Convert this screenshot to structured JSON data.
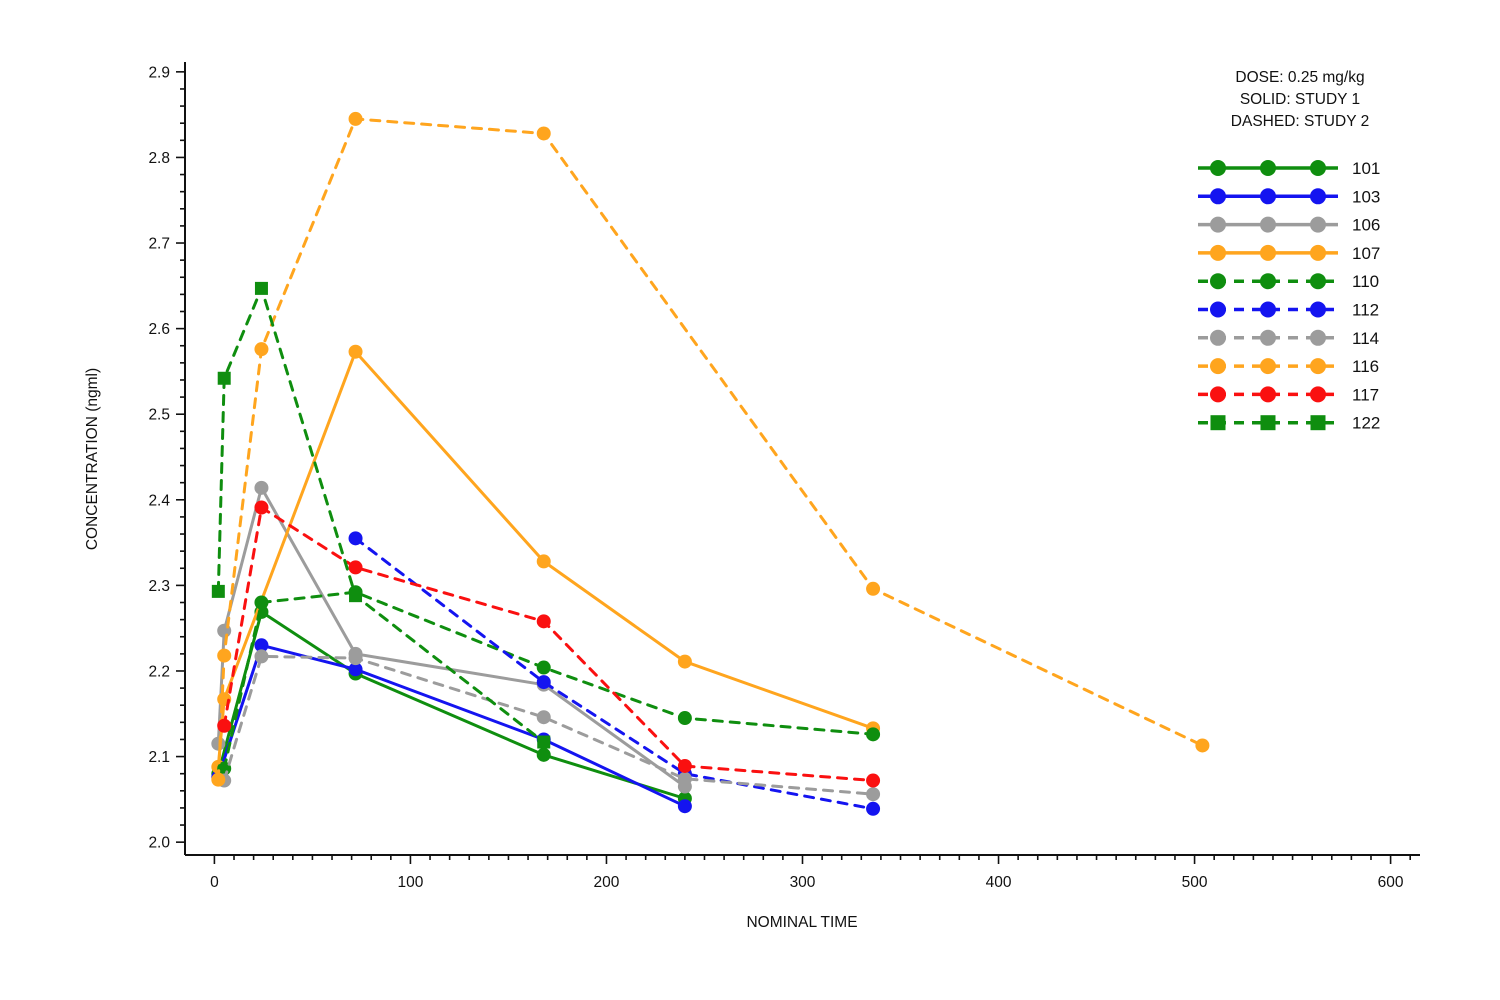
{
  "chart_data": {
    "type": "line",
    "title": "",
    "xlabel": "NOMINAL TIME",
    "ylabel": "CONCENTRATION (ngml)",
    "xlim": [
      -15,
      615
    ],
    "ylim": [
      1.985,
      2.9115
    ],
    "grid": false,
    "x_ticks": {
      "major_start": 0,
      "major_end": 600,
      "major_step": 100,
      "minor_step": 10,
      "minor_end": 610
    },
    "y_ticks": {
      "major_start": 2.0,
      "major_end": 2.9,
      "major_step": 0.1,
      "minor_step": 0.02
    },
    "legend": {
      "position": "top-right",
      "header": [
        "DOSE: 0.25 mg/kg",
        "SOLID: STUDY 1",
        "DASHED: STUDY 2"
      ]
    },
    "series": [
      {
        "id": "101",
        "study": "STUDY 1",
        "style": "solid",
        "marker": "circle",
        "color": "#0f8e0f",
        "points": [
          [
            2,
            2.08
          ],
          [
            24,
            2.269
          ],
          [
            72,
            2.197
          ],
          [
            168,
            2.102
          ],
          [
            240,
            2.051
          ]
        ]
      },
      {
        "id": "103",
        "study": "STUDY 1",
        "style": "solid",
        "marker": "circle",
        "color": "#1414f0",
        "points": [
          [
            2,
            2.076
          ],
          [
            24,
            2.23
          ],
          [
            72,
            2.202
          ],
          [
            168,
            2.12
          ],
          [
            240,
            2.042
          ]
        ]
      },
      {
        "id": "106",
        "study": "STUDY 1",
        "style": "solid",
        "marker": "circle",
        "color": "#9c9c9c",
        "points": [
          [
            2,
            2.115
          ],
          [
            5,
            2.247
          ],
          [
            24,
            2.414
          ],
          [
            72,
            2.22
          ],
          [
            168,
            2.184
          ],
          [
            240,
            2.065
          ]
        ]
      },
      {
        "id": "107",
        "study": "STUDY 1",
        "style": "solid",
        "marker": "circle",
        "color": "#ffa51e",
        "points": [
          [
            2,
            2.088
          ],
          [
            5,
            2.167
          ],
          [
            72,
            2.573
          ],
          [
            168,
            2.328
          ],
          [
            240,
            2.211
          ],
          [
            336,
            2.133
          ]
        ]
      },
      {
        "id": "110",
        "study": "STUDY 2",
        "style": "dashed",
        "marker": "circle",
        "color": "#0f8e0f",
        "points": [
          [
            5,
            2.086
          ],
          [
            24,
            2.28
          ],
          [
            72,
            2.292
          ],
          [
            168,
            2.204
          ],
          [
            240,
            2.145
          ],
          [
            336,
            2.126
          ]
        ]
      },
      {
        "id": "112",
        "study": "STUDY 2",
        "style": "dashed",
        "marker": "circle",
        "color": "#1414f0",
        "points": [
          [
            72,
            2.355
          ],
          [
            168,
            2.187
          ],
          [
            240,
            2.08
          ],
          [
            336,
            2.039
          ]
        ]
      },
      {
        "id": "114",
        "study": "STUDY 2",
        "style": "dashed",
        "marker": "circle",
        "color": "#9c9c9c",
        "points": [
          [
            5,
            2.072
          ],
          [
            24,
            2.217
          ],
          [
            72,
            2.215
          ],
          [
            168,
            2.146
          ],
          [
            240,
            2.074
          ],
          [
            336,
            2.056
          ]
        ]
      },
      {
        "id": "116",
        "study": "STUDY 2",
        "style": "dashed",
        "marker": "circle",
        "color": "#ffa51e",
        "points": [
          [
            2,
            2.073
          ],
          [
            5,
            2.218
          ],
          [
            24,
            2.576
          ],
          [
            72,
            2.845
          ],
          [
            168,
            2.828
          ],
          [
            336,
            2.296
          ],
          [
            504,
            2.113
          ]
        ]
      },
      {
        "id": "117",
        "study": "STUDY 2",
        "style": "dashed",
        "marker": "circle",
        "color": "#fa1010",
        "points": [
          [
            5,
            2.136
          ],
          [
            24,
            2.391
          ],
          [
            72,
            2.321
          ],
          [
            168,
            2.258
          ],
          [
            240,
            2.089
          ],
          [
            336,
            2.072
          ]
        ]
      },
      {
        "id": "122",
        "study": "STUDY 2",
        "style": "dashed",
        "marker": "square",
        "color": "#0f8e0f",
        "points": [
          [
            2,
            2.293
          ],
          [
            5,
            2.542
          ],
          [
            24,
            2.647
          ],
          [
            72,
            2.288
          ],
          [
            168,
            2.117
          ]
        ]
      }
    ]
  }
}
